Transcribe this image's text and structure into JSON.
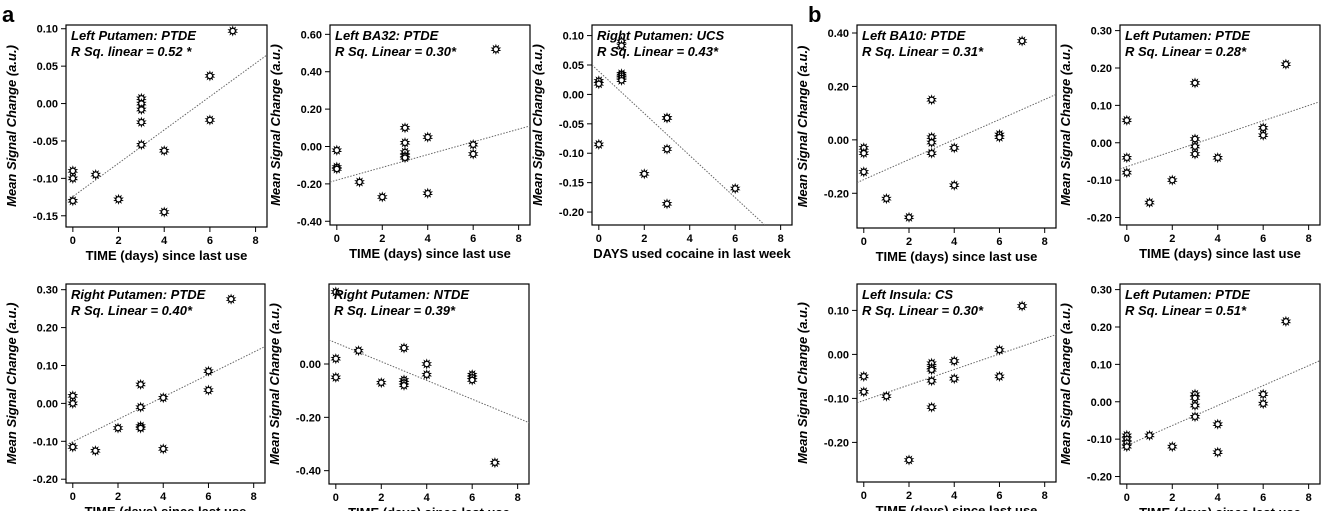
{
  "panel_labels": [
    "a",
    "b"
  ],
  "chart_data": [
    {
      "type": "scatter",
      "title": "Left Putamen: PTDE",
      "subtitle": "R Sq. linear = 0.52 *",
      "xlabel": "TIME (days) since last use",
      "ylabel": "Mean Signal Change (a.u.)",
      "xlim": [
        -0.3,
        8.5
      ],
      "ylim": [
        -0.165,
        0.105
      ],
      "xticks": [
        0,
        2,
        4,
        6,
        8
      ],
      "xtick_labels": [
        "0",
        "2",
        "4",
        "6",
        "8"
      ],
      "yticks": [
        -0.15,
        -0.1,
        -0.05,
        0.0,
        0.05,
        0.1
      ],
      "ytick_labels": [
        "-0.15",
        "-0.10",
        "-0.05",
        "0.00",
        "0.05",
        "0.10"
      ],
      "x": [
        0,
        0,
        0,
        1,
        2,
        3,
        3,
        3,
        3,
        3,
        4,
        4,
        6,
        6,
        7
      ],
      "y": [
        -0.09,
        -0.1,
        -0.13,
        -0.095,
        -0.128,
        0.007,
        0.0,
        -0.008,
        -0.025,
        -0.055,
        -0.063,
        -0.145,
        0.037,
        -0.022,
        0.097
      ],
      "fit": {
        "x": [
          -0.3,
          8.5
        ],
        "y": [
          -0.131,
          0.065
        ]
      }
    },
    {
      "type": "scatter",
      "title": "Left BA32: PTDE",
      "subtitle": "R Sq. Linear = 0.30*",
      "xlabel": "TIME (days) since last use",
      "ylabel": "Mean Signal Change (a.u.)",
      "xlim": [
        -0.3,
        8.5
      ],
      "ylim": [
        -0.42,
        0.65
      ],
      "xticks": [
        0,
        2,
        4,
        6,
        8
      ],
      "xtick_labels": [
        "0",
        "2",
        "4",
        "6",
        "8"
      ],
      "yticks": [
        -0.4,
        -0.2,
        0.0,
        0.2,
        0.4,
        0.6
      ],
      "ytick_labels": [
        "-0.40",
        "-0.20",
        "0.00",
        "0.20",
        "0.40",
        "0.60"
      ],
      "x": [
        0,
        0,
        0,
        1,
        2,
        3,
        3,
        3,
        3,
        3,
        4,
        4,
        6,
        6,
        7
      ],
      "y": [
        -0.02,
        -0.11,
        -0.12,
        -0.19,
        -0.27,
        0.1,
        0.02,
        -0.03,
        -0.05,
        -0.06,
        0.05,
        -0.25,
        0.01,
        -0.04,
        0.52
      ],
      "fit": {
        "x": [
          -0.3,
          8.5
        ],
        "y": [
          -0.19,
          0.11
        ]
      }
    },
    {
      "type": "scatter",
      "title": "Right Putamen: UCS",
      "subtitle": "R Sq. Linear = 0.43*",
      "xlabel": "DAYS used cocaine in last week",
      "ylabel": "Mean Signal Change (a.u.)",
      "xlim": [
        -0.3,
        8.5
      ],
      "ylim": [
        -0.222,
        0.118
      ],
      "xticks": [
        0,
        2,
        4,
        6,
        8
      ],
      "xtick_labels": [
        "0",
        "2",
        "4",
        "6",
        "8"
      ],
      "yticks": [
        -0.2,
        -0.15,
        -0.1,
        -0.05,
        0.0,
        0.05,
        0.1
      ],
      "ytick_labels": [
        "-0.20",
        "-0.15",
        "-0.10",
        "-0.05",
        "0.00",
        "0.05",
        "0.10"
      ],
      "x": [
        0,
        0,
        0,
        1,
        1,
        1,
        1,
        1,
        1,
        2,
        3,
        3,
        3,
        3,
        6
      ],
      "y": [
        0.023,
        0.018,
        -0.085,
        0.09,
        0.083,
        0.035,
        0.032,
        0.028,
        0.024,
        -0.135,
        -0.04,
        -0.04,
        -0.093,
        -0.186,
        -0.16
      ],
      "fit": {
        "x": [
          -0.3,
          7.3
        ],
        "y": [
          0.05,
          -0.222
        ]
      }
    },
    {
      "type": "scatter",
      "title": "Left BA10: PTDE",
      "subtitle": "R Sq. Linear = 0.31*",
      "xlabel": "TIME (days) since last use",
      "ylabel": "Mean Signal Change (a.u.)",
      "xlim": [
        -0.3,
        8.5
      ],
      "ylim": [
        -0.33,
        0.43
      ],
      "xticks": [
        0,
        2,
        4,
        6,
        8
      ],
      "xtick_labels": [
        "0",
        "2",
        "4",
        "6",
        "8"
      ],
      "yticks": [
        -0.2,
        0.0,
        0.2,
        0.4
      ],
      "ytick_labels": [
        "-0.20",
        "0.00",
        "0.20",
        "0.40"
      ],
      "x": [
        0,
        0,
        0,
        1,
        2,
        3,
        3,
        3,
        3,
        4,
        4,
        6,
        6,
        7
      ],
      "y": [
        -0.03,
        -0.05,
        -0.12,
        -0.22,
        -0.29,
        0.15,
        0.01,
        -0.01,
        -0.05,
        -0.03,
        -0.17,
        0.02,
        0.01,
        0.37
      ],
      "fit": {
        "x": [
          -0.3,
          8.5
        ],
        "y": [
          -0.16,
          0.17
        ]
      }
    },
    {
      "type": "scatter",
      "title": "Left Putamen: PTDE",
      "subtitle": "R Sq. Linear = 0.28*",
      "xlabel": "TIME (days) since last use",
      "ylabel": "Mean Signal Change (a.u.)",
      "xlim": [
        -0.3,
        8.5
      ],
      "ylim": [
        -0.22,
        0.315
      ],
      "xticks": [
        0,
        2,
        4,
        6,
        8
      ],
      "xtick_labels": [
        "0",
        "2",
        "4",
        "6",
        "8"
      ],
      "yticks": [
        -0.2,
        -0.1,
        0.0,
        0.1,
        0.2,
        0.3
      ],
      "ytick_labels": [
        "-0.20",
        "-0.10",
        "0.00",
        "0.10",
        "0.20",
        "0.30"
      ],
      "x": [
        0,
        0,
        0,
        1,
        2,
        3,
        3,
        3,
        3,
        4,
        6,
        6,
        7
      ],
      "y": [
        0.06,
        -0.04,
        -0.08,
        -0.16,
        -0.1,
        0.16,
        0.01,
        -0.01,
        -0.03,
        -0.04,
        0.04,
        0.02,
        0.21
      ],
      "fit": {
        "x": [
          -0.3,
          8.5
        ],
        "y": [
          -0.07,
          0.11
        ]
      }
    },
    {
      "type": "scatter",
      "title": "Right Putamen: PTDE",
      "subtitle": "R Sq. Linear = 0.40*",
      "xlabel": "TIME (days) since last use",
      "ylabel": "Mean Signal Change (a.u.)",
      "xlim": [
        -0.3,
        8.5
      ],
      "ylim": [
        -0.21,
        0.315
      ],
      "xticks": [
        0,
        2,
        4,
        6,
        8
      ],
      "xtick_labels": [
        "0",
        "2",
        "4",
        "6",
        "8"
      ],
      "yticks": [
        -0.2,
        -0.1,
        0.0,
        0.1,
        0.2,
        0.3
      ],
      "ytick_labels": [
        "-0.20",
        "-0.10",
        "0.00",
        "0.10",
        "0.20",
        "0.30"
      ],
      "x": [
        0,
        0,
        0,
        1,
        2,
        3,
        3,
        3,
        3,
        4,
        4,
        6,
        6,
        7
      ],
      "y": [
        0.02,
        0.0,
        -0.115,
        -0.125,
        -0.065,
        0.05,
        -0.01,
        -0.06,
        -0.065,
        0.015,
        -0.12,
        0.085,
        0.035,
        0.275
      ],
      "fit": {
        "x": [
          -0.3,
          8.5
        ],
        "y": [
          -0.11,
          0.15
        ]
      }
    },
    {
      "type": "scatter",
      "title": "Right Putamen: NTDE",
      "subtitle": "R Sq. Linear = 0.39*",
      "xlabel": "TIME (days) since last use",
      "ylabel": "Mean Signal Change (a.u.)",
      "xlim": [
        -0.3,
        8.5
      ],
      "ylim": [
        -0.45,
        0.3
      ],
      "xticks": [
        0,
        2,
        4,
        6,
        8
      ],
      "xtick_labels": [
        "0",
        "2",
        "4",
        "6",
        "8"
      ],
      "yticks": [
        -0.4,
        -0.2,
        0.0
      ],
      "ytick_labels": [
        "-0.40",
        "-0.20",
        "0.00"
      ],
      "x": [
        0,
        0,
        0,
        1,
        2,
        3,
        3,
        3,
        3,
        4,
        4,
        6,
        6,
        6,
        7
      ],
      "y": [
        0.27,
        0.02,
        -0.05,
        0.05,
        -0.07,
        0.06,
        -0.06,
        -0.07,
        -0.08,
        0.0,
        -0.04,
        -0.04,
        -0.05,
        -0.06,
        -0.37
      ],
      "fit": {
        "x": [
          -0.3,
          8.5
        ],
        "y": [
          0.09,
          -0.22
        ]
      }
    },
    {
      "type": "scatter",
      "title": "Left Insula: CS",
      "subtitle": "R Sq. Linear = 0.30*",
      "xlabel": "TIME (days) since last use",
      "ylabel": "Mean Signal Change (a.u.)",
      "xlim": [
        -0.3,
        8.5
      ],
      "ylim": [
        -0.29,
        0.16
      ],
      "xticks": [
        0,
        2,
        4,
        6,
        8
      ],
      "xtick_labels": [
        "0",
        "2",
        "4",
        "6",
        "8"
      ],
      "yticks": [
        -0.2,
        -0.1,
        0.0,
        0.1
      ],
      "ytick_labels": [
        "-0.20",
        "-0.10",
        "0.00",
        "0.10"
      ],
      "x": [
        0,
        0,
        1,
        2,
        3,
        3,
        3,
        3,
        3,
        4,
        4,
        6,
        6,
        7
      ],
      "y": [
        -0.05,
        -0.085,
        -0.095,
        -0.24,
        -0.02,
        -0.03,
        -0.035,
        -0.06,
        -0.12,
        -0.015,
        -0.055,
        0.01,
        -0.05,
        0.11
      ],
      "fit": {
        "x": [
          -0.3,
          8.5
        ],
        "y": [
          -0.11,
          0.045
        ]
      }
    },
    {
      "type": "scatter",
      "title": "Left Putamen: PTDE",
      "subtitle": "R Sq. Linear = 0.51*",
      "xlabel": "TIME (days) since last use",
      "ylabel": "Mean Signal Change (a.u.)",
      "xlim": [
        -0.3,
        8.5
      ],
      "ylim": [
        -0.22,
        0.315
      ],
      "xticks": [
        0,
        2,
        4,
        6,
        8
      ],
      "xtick_labels": [
        "0",
        "2",
        "4",
        "6",
        "8"
      ],
      "yticks": [
        -0.2,
        -0.1,
        0.0,
        0.1,
        0.2,
        0.3
      ],
      "ytick_labels": [
        "-0.20",
        "-0.10",
        "0.00",
        "0.10",
        "0.20",
        "0.30"
      ],
      "x": [
        0,
        0,
        0,
        0,
        1,
        2,
        3,
        3,
        3,
        3,
        4,
        4,
        6,
        6,
        7
      ],
      "y": [
        -0.09,
        -0.1,
        -0.11,
        -0.12,
        -0.09,
        -0.12,
        0.02,
        0.01,
        -0.01,
        -0.04,
        -0.06,
        -0.135,
        0.02,
        -0.005,
        0.215
      ],
      "fit": {
        "x": [
          -0.3,
          8.5
        ],
        "y": [
          -0.125,
          0.11
        ]
      }
    }
  ]
}
